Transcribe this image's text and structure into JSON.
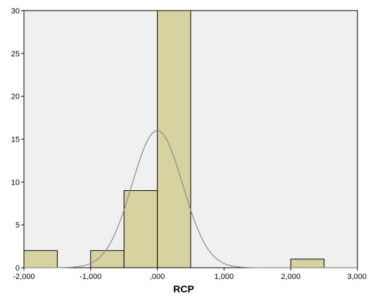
{
  "chart_data": {
    "type": "bar",
    "subtype": "histogram",
    "xlabel": "RCP",
    "ylabel": "",
    "title": "",
    "xlim": [
      -2,
      3
    ],
    "ylim": [
      0,
      30
    ],
    "grid": false,
    "x_ticks": [
      {
        "value": -2,
        "label": "-2,000"
      },
      {
        "value": -1,
        "label": "-1,000"
      },
      {
        "value": 0,
        "label": ",000"
      },
      {
        "value": 1,
        "label": "1,000"
      },
      {
        "value": 2,
        "label": "2,000"
      },
      {
        "value": 3,
        "label": "3,000"
      }
    ],
    "y_ticks": [
      {
        "value": 0,
        "label": "0"
      },
      {
        "value": 5,
        "label": "5"
      },
      {
        "value": 10,
        "label": "10"
      },
      {
        "value": 15,
        "label": "15"
      },
      {
        "value": 20,
        "label": "20"
      },
      {
        "value": 25,
        "label": "25"
      },
      {
        "value": 30,
        "label": "30"
      }
    ],
    "bins": [
      {
        "start": -2.0,
        "end": -1.5,
        "count": 2
      },
      {
        "start": -1.0,
        "end": -0.5,
        "count": 2
      },
      {
        "start": -0.5,
        "end": 0.0,
        "count": 9
      },
      {
        "start": 0.0,
        "end": 0.5,
        "count": 30
      },
      {
        "start": 2.0,
        "end": 2.5,
        "count": 1
      }
    ],
    "normal_curve": {
      "mean": 0.0,
      "peak": 16,
      "sd": 0.38
    },
    "colors": {
      "plot_background": "#f0f0f0",
      "bar_fill": "#d6d3a0",
      "bar_stroke": "#000000",
      "curve": "#888888"
    }
  }
}
